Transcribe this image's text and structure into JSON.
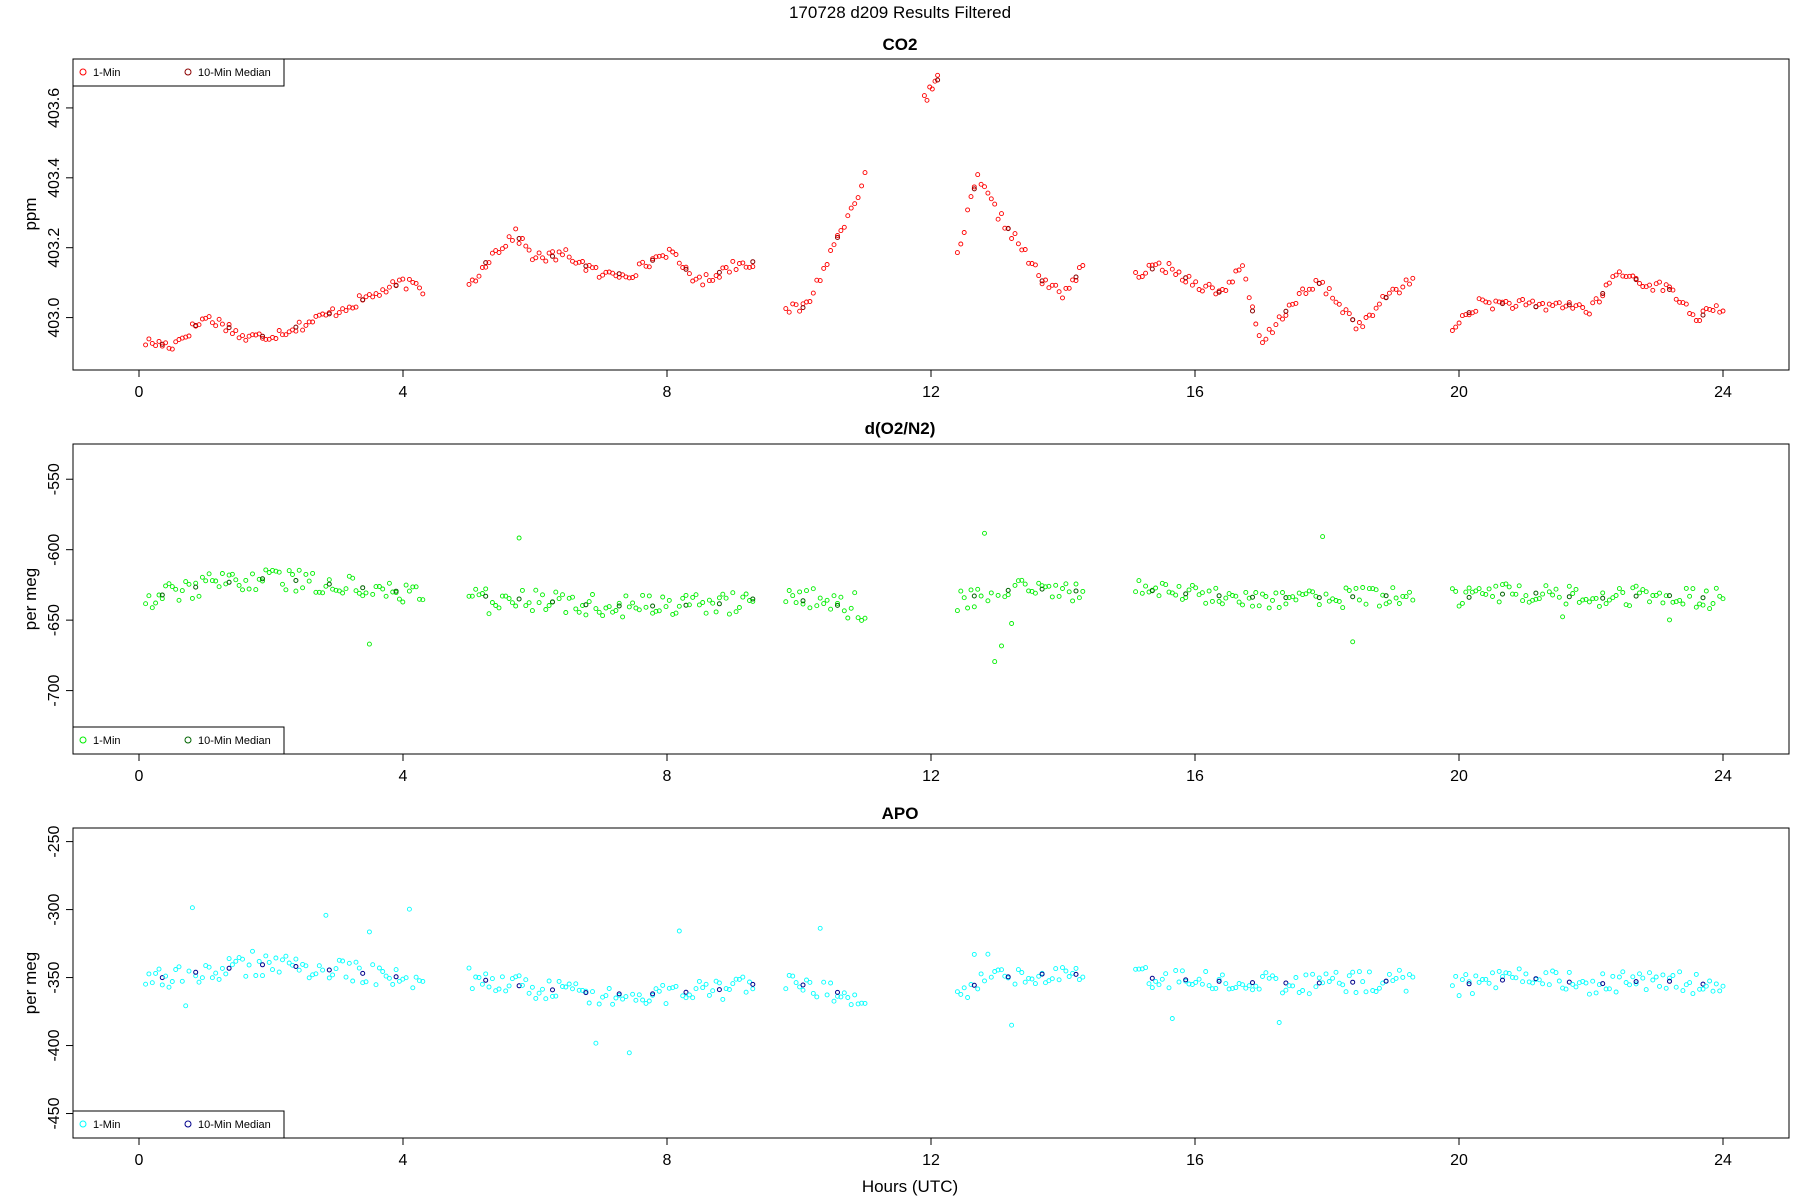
{
  "page_title": "170728   d209   Results Filtered",
  "xlabel": "Hours (UTC)",
  "chart_data": [
    {
      "type": "scatter",
      "title": "CO2",
      "ylabel": "ppm",
      "xlim": [
        -1.0,
        25.0
      ],
      "ylim": [
        402.85,
        403.74
      ],
      "xticks": [
        0,
        4,
        8,
        12,
        16,
        20,
        24
      ],
      "yticks": [
        403.0,
        403.2,
        403.4,
        403.6
      ],
      "ytick_labels": [
        "403.0",
        "403.2",
        "403.4",
        "403.6"
      ],
      "legend_position": "top-left",
      "series": [
        {
          "name": "1-Min",
          "color": "#ff0000",
          "segments": [
            {
              "x": [
                0.1,
                0.5,
                1.0,
                1.3,
                1.6,
                2.0,
                2.5,
                3.0,
                3.5,
                4.0,
                4.3
              ],
              "y": [
                402.93,
                402.92,
                403.0,
                402.98,
                402.94,
                402.95,
                402.98,
                403.02,
                403.06,
                403.1,
                403.08
              ]
            },
            {
              "x": [
                5.0,
                5.3,
                5.7,
                6.0,
                6.5,
                7.0,
                7.5,
                8.0,
                8.5,
                9.0,
                9.3
              ],
              "y": [
                403.09,
                403.17,
                403.24,
                403.17,
                403.18,
                403.12,
                403.13,
                403.19,
                403.1,
                403.15,
                403.16
              ]
            },
            {
              "x": [
                9.8,
                10.1,
                10.4,
                10.7,
                11.0
              ],
              "y": [
                403.02,
                403.03,
                403.15,
                403.28,
                403.4
              ]
            },
            {
              "x": [
                11.9,
                12.1
              ],
              "y": [
                403.62,
                403.68
              ]
            },
            {
              "x": [
                12.4,
                12.7,
                13.0,
                13.3,
                13.7,
                14.0,
                14.3
              ],
              "y": [
                403.18,
                403.4,
                403.3,
                403.22,
                403.1,
                403.07,
                403.14
              ]
            },
            {
              "x": [
                15.1,
                15.5,
                16.0,
                16.4,
                16.7,
                17.0,
                17.5,
                17.9,
                18.5,
                19.0,
                19.3
              ],
              "y": [
                403.12,
                403.15,
                403.1,
                403.07,
                403.15,
                402.92,
                403.05,
                403.1,
                402.97,
                403.08,
                403.1
              ]
            },
            {
              "x": [
                19.9,
                20.3,
                20.8,
                21.2,
                21.6,
                22.0,
                22.4,
                22.8,
                23.2,
                23.6,
                24.0
              ],
              "y": [
                402.97,
                403.04,
                403.04,
                403.03,
                403.04,
                403.02,
                403.13,
                403.1,
                403.08,
                403.0,
                403.03
              ]
            }
          ]
        },
        {
          "name": "10-Min Median",
          "color": "#8b0000",
          "segments": []
        }
      ]
    },
    {
      "type": "scatter",
      "title": "d(O2/N2)",
      "ylabel": "per meg",
      "xlim": [
        -1.0,
        25.0
      ],
      "ylim": [
        -745,
        -525
      ],
      "yticks": [
        -550,
        -600,
        -650,
        -700
      ],
      "ytick_labels": [
        "-550",
        "-600",
        "-650",
        "-700"
      ],
      "legend_position": "bottom-left",
      "series": [
        {
          "name": "1-Min",
          "color": "#00ee00",
          "segments": [
            {
              "x": [
                0.1,
                1.0,
                2.0,
                3.0,
                4.0,
                4.3
              ],
              "y": [
                -635,
                -625,
                -620,
                -625,
                -630,
                -632
              ]
            },
            {
              "x": [
                5.0,
                6.0,
                7.0,
                8.0,
                9.0,
                9.3
              ],
              "y": [
                -632,
                -636,
                -640,
                -640,
                -638,
                -635
              ]
            },
            {
              "x": [
                9.8,
                10.4,
                11.0
              ],
              "y": [
                -635,
                -638,
                -643
              ]
            },
            {
              "x": [
                12.4,
                12.7,
                13.3,
                14.0,
                14.3
              ],
              "y": [
                -638,
                -632,
                -628,
                -628,
                -630
              ]
            },
            {
              "x": [
                15.1,
                16.0,
                17.0,
                18.0,
                19.3
              ],
              "y": [
                -628,
                -632,
                -634,
                -634,
                -632
              ]
            },
            {
              "x": [
                19.9,
                21.0,
                22.0,
                23.0,
                24.0
              ],
              "y": [
                -635,
                -630,
                -635,
                -632,
                -635
              ]
            }
          ]
        },
        {
          "name": "10-Min Median",
          "color": "#006400",
          "segments": []
        }
      ]
    },
    {
      "type": "scatter",
      "title": "APO",
      "ylabel": "per meg",
      "xlim": [
        -1.0,
        25.0
      ],
      "ylim": [
        -468,
        -240
      ],
      "yticks": [
        -250,
        -300,
        -350,
        -400,
        -450
      ],
      "ytick_labels": [
        "-250",
        "-300",
        "-350",
        "-400",
        "-450"
      ],
      "legend_position": "bottom-left",
      "series": [
        {
          "name": "1-Min",
          "color": "#00ffff",
          "segments": [
            {
              "x": [
                0.1,
                1.0,
                2.0,
                3.0,
                4.0,
                4.3
              ],
              "y": [
                -352,
                -345,
                -340,
                -345,
                -350,
                -355
              ]
            },
            {
              "x": [
                5.0,
                6.0,
                7.0,
                8.0,
                9.0,
                9.3
              ],
              "y": [
                -350,
                -358,
                -362,
                -362,
                -358,
                -355
              ]
            },
            {
              "x": [
                9.8,
                10.4,
                11.0
              ],
              "y": [
                -352,
                -360,
                -363
              ]
            },
            {
              "x": [
                12.4,
                12.7,
                13.3,
                14.0,
                14.3
              ],
              "y": [
                -360,
                -355,
                -348,
                -347,
                -348
              ]
            },
            {
              "x": [
                15.1,
                16.0,
                17.0,
                18.0,
                19.3
              ],
              "y": [
                -350,
                -352,
                -354,
                -354,
                -352
              ]
            },
            {
              "x": [
                19.9,
                21.0,
                22.0,
                23.0,
                24.0
              ],
              "y": [
                -356,
                -350,
                -355,
                -352,
                -356
              ]
            }
          ]
        },
        {
          "name": "10-Min Median",
          "color": "#00008b",
          "segments": []
        }
      ]
    }
  ]
}
